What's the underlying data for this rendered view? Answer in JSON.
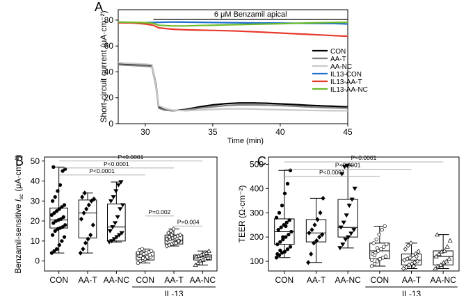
{
  "chart_data": [
    {
      "panel": "A",
      "type": "line",
      "title": "",
      "xlabel": "Time (min)",
      "ylabel": "Short-circuit current (μA·cm⁻²)",
      "xlim": [
        28,
        45
      ],
      "ylim": [
        0,
        88
      ],
      "xticks": [
        30,
        35,
        40,
        45
      ],
      "yticks": [
        0,
        20,
        40,
        60,
        80
      ],
      "annotation": {
        "text": "6 μM Benzamil apical",
        "x_start": 30.6,
        "x_end": 45
      },
      "legend": "right",
      "series": [
        {
          "name": "CON",
          "color": "#000000",
          "x": [
            28,
            29,
            30,
            30.5,
            30.8,
            31.0,
            31.4,
            32,
            33,
            34,
            35,
            36,
            37,
            38,
            39,
            40,
            41,
            42,
            43,
            44,
            45
          ],
          "y": [
            46,
            46,
            45.5,
            45,
            30,
            13,
            11,
            10,
            11,
            13,
            14.5,
            15.5,
            16,
            16,
            15.8,
            15.3,
            14.8,
            14.2,
            13.8,
            13.4,
            13
          ]
        },
        {
          "name": "AA-T",
          "color": "#808080",
          "x": [
            28,
            29,
            30,
            30.5,
            30.8,
            31.0,
            31.4,
            32,
            33,
            34,
            35,
            36,
            37,
            38,
            39,
            40,
            41,
            42,
            43,
            44,
            45
          ],
          "y": [
            45.5,
            45,
            44.5,
            44,
            28,
            12,
            10.5,
            10,
            10.5,
            12,
            13,
            14,
            14.5,
            14.5,
            14.3,
            14,
            13.5,
            13,
            12.5,
            12.2,
            12
          ]
        },
        {
          "name": "AA-NC",
          "color": "#c8c8c8",
          "x": [
            28,
            29,
            30,
            30.5,
            30.8,
            31.0,
            31.4,
            32,
            33,
            34,
            35,
            36,
            37,
            38,
            39,
            40,
            41,
            42,
            43,
            44,
            45
          ],
          "y": [
            47,
            46.5,
            46,
            45.5,
            29,
            14,
            12,
            10.5,
            10,
            10.5,
            11,
            11.5,
            11.5,
            11.3,
            11,
            10.8,
            10.5,
            10.3,
            10.1,
            10,
            10
          ]
        },
        {
          "name": "IL13-CON",
          "color": "#1f6fd0",
          "x": [
            28,
            30,
            31,
            32,
            34,
            36,
            38,
            40,
            42,
            44,
            45
          ],
          "y": [
            78,
            78,
            78.3,
            78.5,
            78.3,
            78,
            77.8,
            77.7,
            77.5,
            77.3,
            77
          ]
        },
        {
          "name": "IL13-AA-T",
          "color": "#e8392c",
          "x": [
            28,
            29,
            30,
            30.6,
            31,
            32,
            33,
            34,
            35,
            36,
            37,
            38,
            39,
            40,
            41,
            42,
            43,
            44,
            45
          ],
          "y": [
            78,
            77.8,
            77,
            76,
            74,
            73,
            72.5,
            72.2,
            72,
            71.8,
            71.5,
            71,
            70.5,
            70,
            69.5,
            69,
            68.5,
            68,
            67.5
          ]
        },
        {
          "name": "IL13-AA-NC",
          "color": "#6cbb2a",
          "x": [
            28,
            29,
            30,
            30.6,
            31,
            32,
            33,
            34,
            35,
            36,
            37,
            38,
            39,
            40,
            41,
            42,
            43,
            44,
            45
          ],
          "y": [
            78.5,
            78.3,
            78,
            77.5,
            76,
            75.5,
            75.5,
            75.8,
            76,
            76.3,
            76.5,
            76.8,
            77,
            77.2,
            77.5,
            77.8,
            78,
            78.2,
            78.3
          ]
        }
      ]
    },
    {
      "panel": "B",
      "type": "box",
      "ylabel_prefix": "Benzamil-sensitive ",
      "ylabel_var": "I",
      "ylabel_sub": "sc",
      "ylabel_unit": " (μA·cm⁻²)",
      "ylim": [
        -5,
        52
      ],
      "yticks": [
        0,
        10,
        20,
        30,
        40,
        50
      ],
      "categories": [
        "CON",
        "AA-T",
        "AA-NC",
        "CON",
        "AA-T",
        "AA-NC"
      ],
      "group_label": "IL-13",
      "group_span": [
        3,
        5
      ],
      "boxes": [
        {
          "whisker_low": 4,
          "q1": 16.5,
          "median": 20.5,
          "q3": 26.5,
          "whisker_high": 47,
          "marker": "circle",
          "points": [
            4,
            5,
            6,
            8,
            10,
            12,
            13,
            15,
            16,
            16.5,
            17,
            18,
            19,
            20,
            20.5,
            21,
            22,
            23,
            24,
            25,
            26,
            27,
            28,
            30,
            32,
            35,
            38,
            45,
            46,
            47
          ]
        },
        {
          "whisker_low": 4,
          "q1": 11.5,
          "median": 24,
          "q3": 30.5,
          "whisker_high": 34,
          "marker": "diamond",
          "points": [
            4,
            6,
            9,
            11,
            13,
            18,
            21,
            24,
            26,
            28,
            30,
            31,
            32,
            34
          ]
        },
        {
          "whisker_low": 9.5,
          "q1": 10,
          "median": 17,
          "q3": 28.5,
          "whisker_high": 39.5,
          "marker": "triangle-down",
          "points": [
            9.5,
            10,
            11,
            12,
            13,
            14,
            15,
            17,
            19,
            22,
            26,
            28,
            30,
            32,
            35,
            38,
            39.5
          ]
        },
        {
          "whisker_low": -1,
          "q1": 0.5,
          "median": 2.5,
          "q3": 4.5,
          "whisker_high": 6,
          "marker": "circle-open",
          "points": [
            -1,
            0,
            0.5,
            1,
            1.5,
            2,
            2.5,
            3,
            3.5,
            4,
            4.5,
            5,
            5.5,
            6,
            1,
            2,
            3,
            4,
            2.5,
            1.5
          ]
        },
        {
          "whisker_low": 7.5,
          "q1": 8.5,
          "median": 10.5,
          "q3": 13,
          "whisker_high": 16,
          "marker": "diamond-open",
          "points": [
            7.5,
            8,
            8.5,
            9,
            9.5,
            10,
            10.5,
            11,
            11.5,
            12,
            12.5,
            13,
            14,
            15,
            16,
            9,
            10,
            11,
            12,
            13
          ]
        },
        {
          "whisker_low": -2,
          "q1": 0.5,
          "median": 2,
          "q3": 3,
          "whisker_high": 5,
          "marker": "triangle-open",
          "points": [
            -2,
            -1,
            0,
            0.5,
            1,
            1.5,
            2,
            2.5,
            3,
            3.5,
            4,
            5
          ]
        }
      ],
      "comparisons": [
        {
          "from": 0,
          "to": 5,
          "label": "P<0.0001",
          "y": 50
        },
        {
          "from": 0,
          "to": 4,
          "label": "P<0.0001",
          "y": 46.5
        },
        {
          "from": 0,
          "to": 3,
          "label": "P<0.0001",
          "y": 43
        },
        {
          "from": 3,
          "to": 4,
          "label": "P=0.002",
          "y": 22.5
        },
        {
          "from": 4,
          "to": 5,
          "label": "P=0.004",
          "y": 17.5
        }
      ]
    },
    {
      "panel": "C",
      "type": "box",
      "ylabel_prefix": "TEER ",
      "ylabel_var": "",
      "ylabel_sub": "",
      "ylabel_unit": "(Ω·cm⁻²)",
      "ylim": [
        60,
        530
      ],
      "yticks": [
        100,
        200,
        300,
        400,
        500
      ],
      "categories": [
        "CON",
        "AA-T",
        "AA-NC",
        "CON",
        "AA-T",
        "AA-NC"
      ],
      "group_label": "IL-13",
      "group_span": [
        3,
        5
      ],
      "boxes": [
        {
          "whisker_low": 115,
          "q1": 170,
          "median": 222,
          "q3": 275,
          "whisker_high": 475,
          "marker": "circle",
          "points": [
            115,
            125,
            135,
            140,
            150,
            160,
            170,
            180,
            190,
            200,
            210,
            222,
            230,
            240,
            250,
            260,
            270,
            280,
            300,
            330,
            380,
            420,
            475,
            130,
            145,
            200,
            245
          ]
        },
        {
          "whisker_low": 95,
          "q1": 180,
          "median": 217,
          "q3": 272,
          "whisker_high": 360,
          "marker": "diamond",
          "points": [
            95,
            130,
            175,
            185,
            200,
            210,
            217,
            230,
            250,
            272,
            300,
            360
          ]
        },
        {
          "whisker_low": 155,
          "q1": 200,
          "median": 240,
          "q3": 355,
          "whisker_high": 495,
          "marker": "triangle-down",
          "points": [
            155,
            170,
            190,
            200,
            215,
            230,
            240,
            260,
            290,
            330,
            355,
            400,
            460,
            490,
            495
          ]
        },
        {
          "whisker_low": 80,
          "q1": 110,
          "median": 143,
          "q3": 175,
          "whisker_high": 245,
          "marker": "circle-open",
          "points": [
            80,
            90,
            100,
            110,
            115,
            120,
            130,
            135,
            143,
            150,
            160,
            170,
            175,
            190,
            210,
            230,
            245,
            105,
            125,
            155
          ]
        },
        {
          "whisker_low": 70,
          "q1": 85,
          "median": 105,
          "q3": 130,
          "whisker_high": 175,
          "marker": "diamond-open",
          "points": [
            70,
            75,
            85,
            90,
            95,
            100,
            105,
            110,
            115,
            125,
            130,
            140,
            150,
            165,
            175,
            80,
            120
          ]
        },
        {
          "whisker_low": 70,
          "q1": 85,
          "median": 120,
          "q3": 143,
          "whisker_high": 210,
          "marker": "triangle-open",
          "points": [
            70,
            80,
            85,
            95,
            100,
            110,
            120,
            130,
            140,
            143,
            160,
            185,
            210
          ]
        }
      ],
      "comparisons": [
        {
          "from": 0,
          "to": 5,
          "label": "P<0.0001",
          "y": 510
        },
        {
          "from": 0,
          "to": 4,
          "label": "P<0.0001",
          "y": 480
        },
        {
          "from": 0,
          "to": 3,
          "label": "P<0.0001",
          "y": 450
        }
      ]
    }
  ]
}
